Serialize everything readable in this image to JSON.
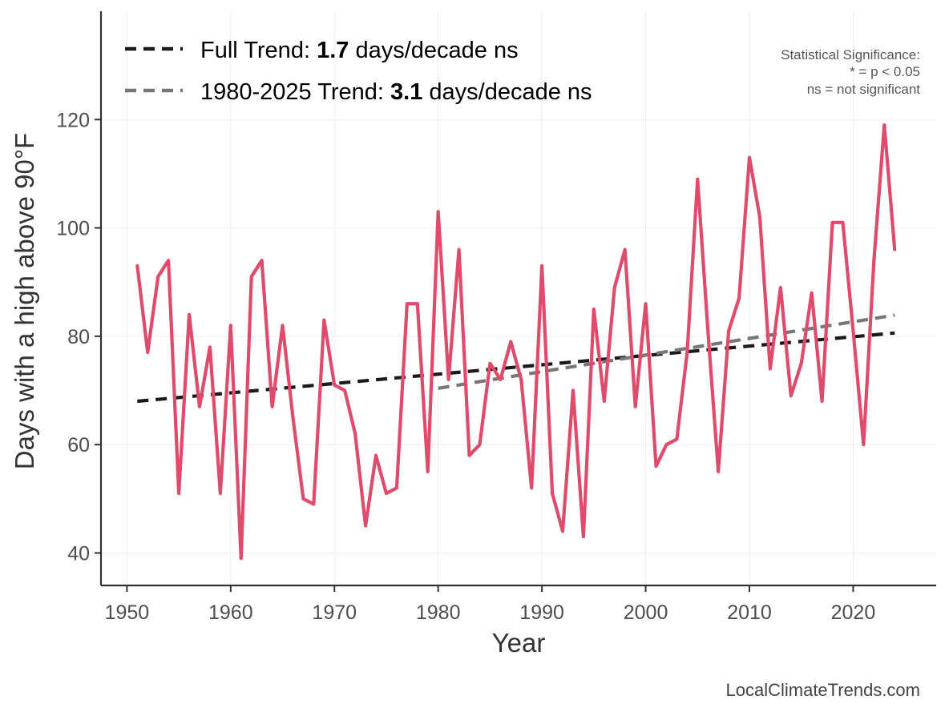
{
  "chart_data": {
    "type": "line",
    "title": "",
    "xlabel": "Year",
    "ylabel": "Days with a high above 90°F",
    "xlim": [
      1947.5,
      2028
    ],
    "ylim": [
      34,
      140
    ],
    "xticks": [
      1950,
      1960,
      1970,
      1980,
      1990,
      2000,
      2010,
      2020
    ],
    "yticks": [
      40,
      60,
      80,
      100,
      120
    ],
    "grid": true,
    "series": [
      {
        "name": "Days with a high above 90°F",
        "color": "#E04B6B",
        "x": [
          1951,
          1952,
          1953,
          1954,
          1955,
          1956,
          1957,
          1958,
          1959,
          1960,
          1961,
          1962,
          1963,
          1964,
          1965,
          1966,
          1967,
          1968,
          1969,
          1970,
          1971,
          1972,
          1973,
          1974,
          1975,
          1976,
          1977,
          1978,
          1979,
          1980,
          1981,
          1982,
          1983,
          1984,
          1985,
          1986,
          1987,
          1988,
          1989,
          1990,
          1991,
          1992,
          1993,
          1994,
          1995,
          1996,
          1997,
          1998,
          1999,
          2000,
          2001,
          2002,
          2003,
          2004,
          2005,
          2006,
          2007,
          2008,
          2009,
          2010,
          2011,
          2012,
          2013,
          2014,
          2015,
          2016,
          2017,
          2018,
          2019,
          2020,
          2021,
          2022,
          2023,
          2024
        ],
        "values": [
          93,
          77,
          91,
          94,
          51,
          84,
          67,
          78,
          51,
          82,
          39,
          91,
          94,
          67,
          82,
          65,
          50,
          49,
          83,
          71,
          70,
          62,
          45,
          58,
          51,
          52,
          86,
          86,
          55,
          103,
          72,
          96,
          58,
          60,
          75,
          72,
          79,
          72,
          52,
          93,
          51,
          44,
          70,
          43,
          85,
          68,
          89,
          96,
          67,
          86,
          56,
          60,
          61,
          77,
          109,
          81,
          55,
          81,
          87,
          113,
          102,
          74,
          89,
          69,
          75,
          88,
          68,
          101,
          101,
          81,
          60,
          94,
          119,
          96
        ]
      }
    ],
    "trend_lines": [
      {
        "name": "Full Trend",
        "color": "#1a1a1a",
        "x": [
          1951,
          2024
        ],
        "y": [
          68.0,
          80.6
        ]
      },
      {
        "name": "1980-2025 Trend",
        "color": "#777777",
        "x": [
          1980,
          2024
        ],
        "y": [
          70.4,
          83.9
        ]
      }
    ],
    "legend": {
      "position": "top-left",
      "entries": [
        {
          "prefix": "Full Trend: ",
          "value": "1.7",
          "suffix": " days/decade ns",
          "color": "#1a1a1a"
        },
        {
          "prefix": "1980-2025 Trend: ",
          "value": "3.1",
          "suffix": " days/decade ns",
          "color": "#777777"
        }
      ]
    },
    "annotation": {
      "position": "top-right",
      "lines": [
        "Statistical Significance:",
        "* = p < 0.05",
        "ns = not significant"
      ]
    },
    "source": "LocalClimateTrends.com"
  }
}
